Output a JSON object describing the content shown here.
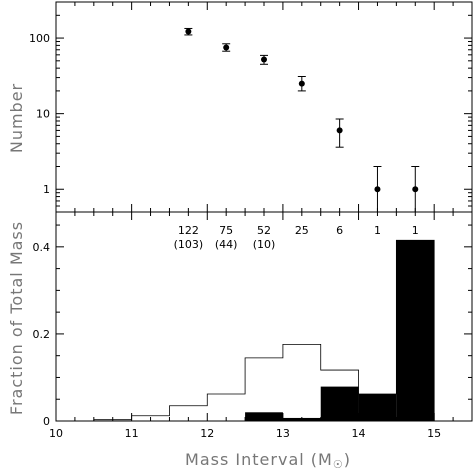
{
  "chart_data": [
    {
      "type": "scatter",
      "ylabel": "Number",
      "yscale": "log",
      "ylim": [
        0.5,
        300
      ],
      "xlim": [
        10,
        15.5
      ],
      "y_ticks": [
        {
          "value": 1,
          "label": "1"
        },
        {
          "value": 10,
          "label": "10"
        },
        {
          "value": 100,
          "label": "100"
        }
      ],
      "points": [
        {
          "x": 11.75,
          "y": 122,
          "err_low": 110,
          "err_high": 134
        },
        {
          "x": 12.25,
          "y": 75,
          "err_low": 67,
          "err_high": 84
        },
        {
          "x": 12.75,
          "y": 52,
          "err_low": 45,
          "err_high": 59
        },
        {
          "x": 13.25,
          "y": 25,
          "err_low": 20,
          "err_high": 31
        },
        {
          "x": 13.75,
          "y": 6,
          "err_low": 3.6,
          "err_high": 8.5
        },
        {
          "x": 14.25,
          "y": 1,
          "err_low": 0.45,
          "err_high": 2
        },
        {
          "x": 14.75,
          "y": 1,
          "err_low": 0.45,
          "err_high": 2
        }
      ],
      "grid": false
    },
    {
      "type": "bar",
      "xlabel": "Mass Interval (M",
      "xlabel_symbol": "☉",
      "xlabel_close": ")",
      "ylabel": "Fraction of Total Mass",
      "xlim": [
        10,
        15.5
      ],
      "ylim": [
        0,
        0.48
      ],
      "x_ticks": [
        {
          "value": 10,
          "label": "10"
        },
        {
          "value": 11,
          "label": "11"
        },
        {
          "value": 12,
          "label": "12"
        },
        {
          "value": 13,
          "label": "13"
        },
        {
          "value": 14,
          "label": "14"
        },
        {
          "value": 15,
          "label": "15"
        }
      ],
      "y_ticks": [
        {
          "value": 0,
          "label": "0"
        },
        {
          "value": 0.2,
          "label": "0.2"
        },
        {
          "value": 0.4,
          "label": "0.4"
        }
      ],
      "series": [
        {
          "style": "outline",
          "bins": [
            {
              "x0": 10.0,
              "x1": 10.5,
              "value": 0.0
            },
            {
              "x0": 10.5,
              "x1": 11.0,
              "value": 0.003
            },
            {
              "x0": 11.0,
              "x1": 11.5,
              "value": 0.012
            },
            {
              "x0": 11.5,
              "x1": 12.0,
              "value": 0.035
            },
            {
              "x0": 12.0,
              "x1": 12.5,
              "value": 0.062
            },
            {
              "x0": 12.5,
              "x1": 13.0,
              "value": 0.145
            },
            {
              "x0": 13.0,
              "x1": 13.5,
              "value": 0.176
            },
            {
              "x0": 13.5,
              "x1": 14.0,
              "value": 0.117
            },
            {
              "x0": 14.0,
              "x1": 14.5,
              "value": 0.062
            },
            {
              "x0": 14.5,
              "x1": 15.0,
              "value": 0.415
            }
          ]
        },
        {
          "style": "filled",
          "bins": [
            {
              "x0": 12.5,
              "x1": 13.0,
              "value": 0.02
            },
            {
              "x0": 13.0,
              "x1": 13.5,
              "value": 0.007
            },
            {
              "x0": 13.5,
              "x1": 14.0,
              "value": 0.079
            },
            {
              "x0": 14.0,
              "x1": 14.5,
              "value": 0.062
            },
            {
              "x0": 14.5,
              "x1": 15.0,
              "value": 0.415
            }
          ]
        }
      ],
      "counts": [
        {
          "x": 11.75,
          "top": "122",
          "bottom": "(103)"
        },
        {
          "x": 12.25,
          "top": "75",
          "bottom": "(44)"
        },
        {
          "x": 12.75,
          "top": "52",
          "bottom": "(10)"
        },
        {
          "x": 13.25,
          "top": "25",
          "bottom": ""
        },
        {
          "x": 13.75,
          "top": "6",
          "bottom": ""
        },
        {
          "x": 14.25,
          "top": "1",
          "bottom": ""
        },
        {
          "x": 14.75,
          "top": "1",
          "bottom": ""
        }
      ],
      "grid": false
    }
  ]
}
